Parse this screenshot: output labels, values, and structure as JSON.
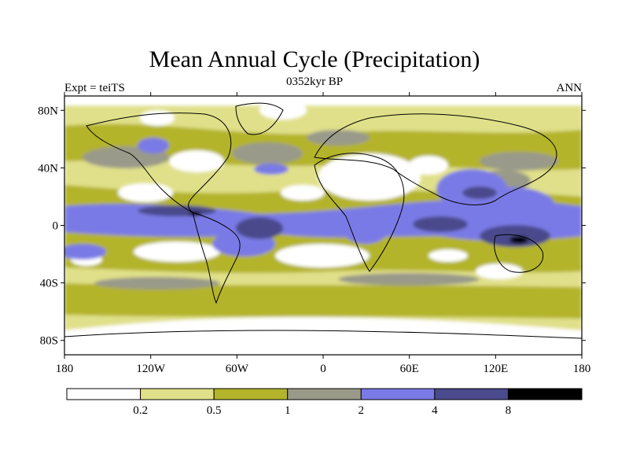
{
  "header": {
    "title": "Mean Annual Cycle (Precipitation)",
    "subtitle": "0352kyr BP",
    "left_label": "Expt = teiTS",
    "right_label": "ANN"
  },
  "map": {
    "projection": "cylindrical-equidistant",
    "lon_range": [
      -180,
      180
    ],
    "lat_range": [
      -90,
      90
    ],
    "lat_ticks": [
      {
        "value": 80,
        "label": "80N"
      },
      {
        "value": 40,
        "label": "40N"
      },
      {
        "value": 0,
        "label": "0"
      },
      {
        "value": -40,
        "label": "40S"
      },
      {
        "value": -80,
        "label": "80S"
      }
    ],
    "lon_ticks": [
      {
        "value": -180,
        "label": "180"
      },
      {
        "value": -120,
        "label": "120W"
      },
      {
        "value": -60,
        "label": "60W"
      },
      {
        "value": 0,
        "label": "0"
      },
      {
        "value": 60,
        "label": "60E"
      },
      {
        "value": 120,
        "label": "120E"
      },
      {
        "value": 180,
        "label": "180"
      }
    ]
  },
  "colorbar": {
    "levels": [
      "0.2",
      "0.5",
      "1",
      "2",
      "4",
      "8"
    ],
    "colors": [
      "#ffffff",
      "#e0e08a",
      "#b4b42a",
      "#9a9a8a",
      "#7a7ae6",
      "#4a4a8c",
      "#000000"
    ]
  }
}
